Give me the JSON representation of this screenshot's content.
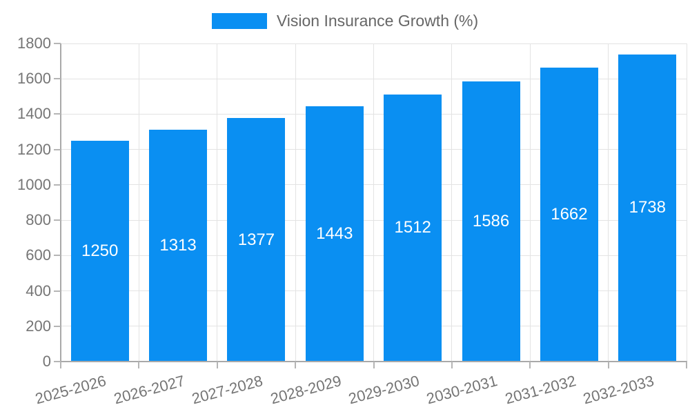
{
  "legend": {
    "label": "Vision Insurance Growth (%)"
  },
  "chart_data": {
    "type": "bar",
    "title": "Vision Insurance Growth (%)",
    "categories": [
      "2025-2026",
      "2026-2027",
      "2027-2028",
      "2028-2029",
      "2029-2030",
      "2030-2031",
      "2031-2032",
      "2032-2033"
    ],
    "values": [
      1250,
      1313,
      1377,
      1443,
      1512,
      1586,
      1662,
      1738
    ],
    "xlabel": "",
    "ylabel": "",
    "ylim": [
      0,
      1800
    ],
    "yticks": [
      0,
      200,
      400,
      600,
      800,
      1000,
      1200,
      1400,
      1600,
      1800
    ],
    "grid": true,
    "legend_position": "top",
    "value_labels_inside_bars": true,
    "colors": {
      "bar": "#0A8FF2",
      "value_label": "#ffffff",
      "axis_text": "#757575",
      "legend_text": "#666666",
      "gridline": "#e3e3e3",
      "axis_line": "#a9a9a9",
      "tick": "#b5b5b5",
      "background": "#ffffff"
    }
  }
}
